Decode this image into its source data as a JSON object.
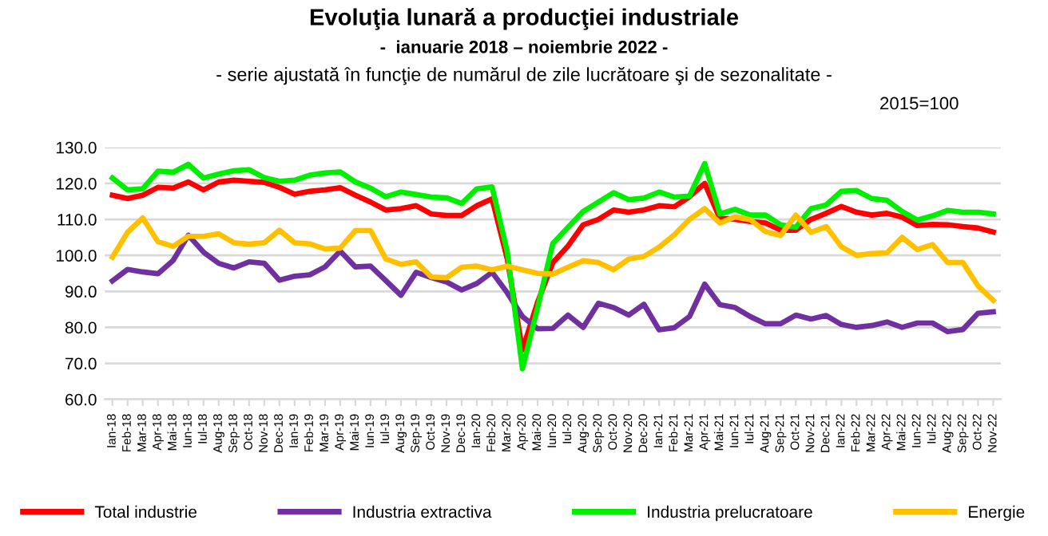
{
  "chart_data": {
    "type": "line",
    "title": "Evoluţia lunară a producţiei industriale",
    "subtitle": "-  ianuarie 2018 – noiembrie 2022 -\n- serie ajustată în funcţie de numărul de zile lucrătoare şi de sezonalitate -",
    "annotations": [
      "2015=100"
    ],
    "categories": [
      "Ian-18",
      "Feb-18",
      "Mar-18",
      "Apr-18",
      "Mai-18",
      "Iun-18",
      "Iul-18",
      "Aug-18",
      "Sep-18",
      "Oct-18",
      "Nov-18",
      "Dec-18",
      "Ian-19",
      "Feb-19",
      "Mar-19",
      "Apr-19",
      "Mai-19",
      "Iun-19",
      "Iul-19",
      "Aug-19",
      "Sep-19",
      "Oct-19",
      "Nov-19",
      "Dec-19",
      "Ian-20",
      "Feb-20",
      "Mar-20",
      "Apr-20",
      "Mai-20",
      "Iun-20",
      "Iul-20",
      "Aug-20",
      "Sep-20",
      "Oct-20",
      "Nov-20",
      "Dec-20",
      "Ian-21",
      "Feb-21",
      "Mar-21",
      "Apr-21",
      "Mai-21",
      "Iun-21",
      "Iul-21",
      "Aug-21",
      "Sep-21",
      "Oct-21",
      "Nov-21",
      "Dec-21",
      "Ian-22",
      "Feb-22",
      "Mar-22",
      "Apr-22",
      "Mai-22",
      "Iun-22",
      "Iul-22",
      "Aug-22",
      "Sep-22",
      "Oct-22",
      "Nov-22"
    ],
    "series": [
      {
        "name": "Total industrie",
        "color": "#ff0000",
        "values": [
          116.7,
          115.8,
          116.7,
          118.9,
          118.7,
          120.4,
          118.2,
          120.4,
          120.9,
          120.6,
          120.3,
          118.9,
          117.0,
          117.8,
          118.2,
          118.8,
          116.7,
          114.8,
          112.6,
          113.0,
          113.8,
          111.5,
          111.1,
          111.1,
          113.8,
          115.7,
          99.0,
          73.7,
          87.0,
          98.0,
          102.6,
          108.5,
          110.0,
          112.6,
          112.0,
          112.6,
          113.8,
          113.5,
          116.3,
          120.0,
          110.3,
          110.0,
          109.4,
          109.0,
          107.0,
          107.0,
          110.0,
          111.7,
          113.6,
          112.0,
          111.2,
          111.7,
          110.6,
          108.3,
          108.6,
          108.5,
          108.0,
          107.6,
          106.5
        ]
      },
      {
        "name": "Industria extractiva",
        "color": "#7030a0",
        "values": [
          92.9,
          96.1,
          95.4,
          94.9,
          98.6,
          105.6,
          100.9,
          97.8,
          96.5,
          98.2,
          97.8,
          93.1,
          94.2,
          94.6,
          96.8,
          101.2,
          96.8,
          97.0,
          93.0,
          88.9,
          95.3,
          93.8,
          92.6,
          90.4,
          92.2,
          95.3,
          89.6,
          83.0,
          79.6,
          79.7,
          83.4,
          80.0,
          86.7,
          85.5,
          83.4,
          86.4,
          79.3,
          79.9,
          83.0,
          92.0,
          86.3,
          85.5,
          83.0,
          81.0,
          81.0,
          83.4,
          82.3,
          83.3,
          80.8,
          80.0,
          80.5,
          81.5,
          80.0,
          81.2,
          81.2,
          78.8,
          79.4,
          83.9,
          84.3
        ]
      },
      {
        "name": "Industria prelucratoare",
        "color": "#00ee00",
        "values": [
          121.5,
          118.2,
          118.5,
          123.4,
          123.1,
          125.3,
          121.5,
          122.6,
          123.5,
          123.8,
          121.6,
          120.6,
          120.9,
          122.3,
          122.9,
          123.2,
          120.4,
          118.7,
          116.3,
          117.6,
          116.9,
          116.2,
          116.0,
          114.4,
          118.5,
          119.0,
          101.0,
          68.5,
          85.5,
          103.3,
          107.8,
          112.2,
          114.8,
          117.4,
          115.5,
          115.9,
          117.6,
          116.2,
          116.5,
          125.5,
          111.5,
          112.8,
          111.2,
          111.2,
          108.5,
          107.8,
          113.0,
          114.0,
          117.8,
          118.0,
          115.8,
          115.3,
          112.2,
          109.8,
          111.0,
          112.5,
          112.0,
          112.0,
          111.5
        ]
      },
      {
        "name": "Energie",
        "color": "#ffc000",
        "values": [
          99.5,
          106.4,
          110.4,
          103.8,
          102.5,
          105.3,
          105.3,
          106.0,
          103.5,
          103.1,
          103.5,
          107.0,
          103.5,
          103.2,
          101.8,
          102.0,
          106.9,
          106.9,
          99.0,
          97.5,
          98.2,
          94.0,
          93.8,
          96.7,
          97.0,
          96.0,
          97.0,
          96.0,
          95.0,
          94.8,
          96.7,
          98.5,
          98.0,
          96.0,
          99.0,
          99.7,
          102.3,
          105.7,
          110.0,
          113.0,
          109.0,
          110.7,
          109.9,
          106.6,
          105.5,
          111.2,
          106.4,
          108.0,
          102.4,
          100.0,
          100.5,
          100.7,
          105.0,
          101.6,
          103.0,
          98.0,
          98.0,
          91.5,
          87.5
        ]
      }
    ],
    "ylim": [
      60,
      130
    ],
    "yticks": [
      {
        "value": 60,
        "label": "60.0"
      },
      {
        "value": 70,
        "label": "70.0"
      },
      {
        "value": 80,
        "label": "80.0"
      },
      {
        "value": 90,
        "label": "90.0"
      },
      {
        "value": 100,
        "label": "100.0"
      },
      {
        "value": 110,
        "label": "110.0"
      },
      {
        "value": 120,
        "label": "120.0"
      },
      {
        "value": 130,
        "label": "130.0"
      }
    ],
    "grid": "y",
    "legend": "bottom",
    "marker": "none",
    "line_style": "solid"
  }
}
